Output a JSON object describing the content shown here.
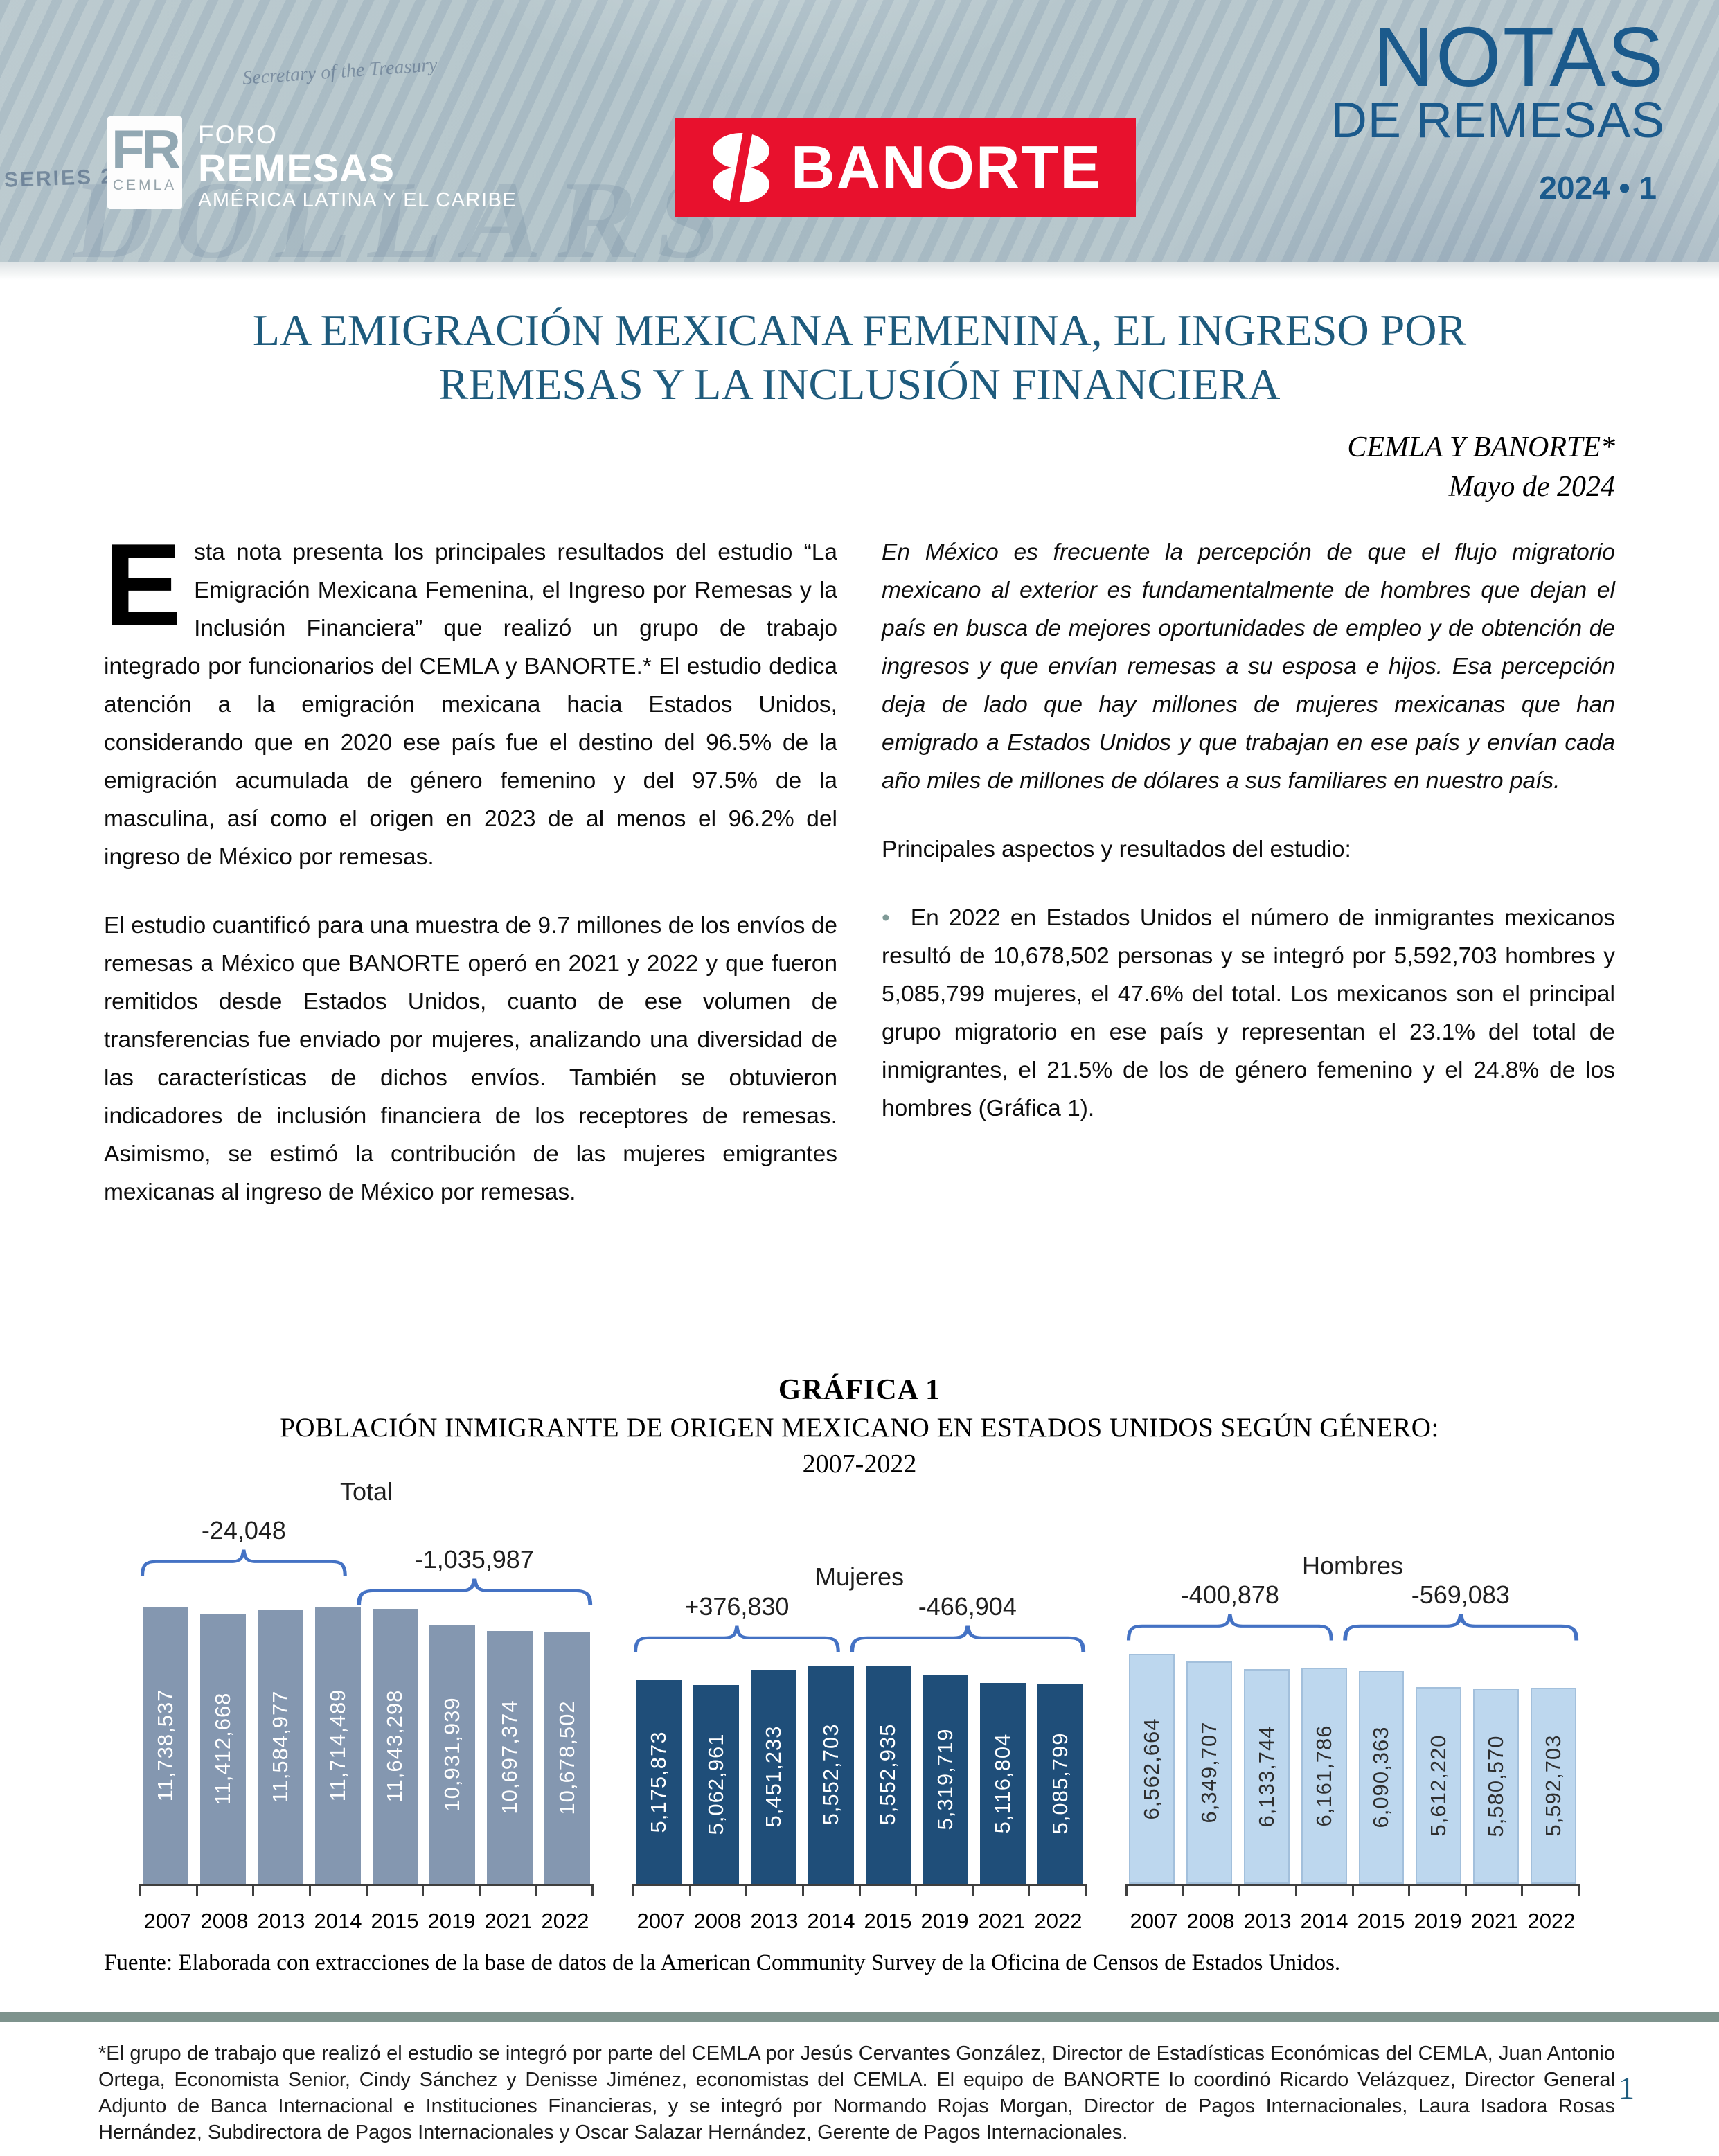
{
  "header": {
    "series_label": "SERIES 2009",
    "treasury_label": "Secretary of the Treasury",
    "watermark": "DOLLARS",
    "fr_logo": {
      "initials": "FR",
      "org": "CEMLA"
    },
    "foro": {
      "line1": "FORO",
      "line2": "REMESAS",
      "line3": "AMÉRICA LATINA Y EL CARIBE"
    },
    "banorte_label": "BANORTE",
    "masthead": {
      "line1": "NOTAS",
      "line2": "DE REMESAS",
      "issue": "2024 •  1"
    }
  },
  "title": {
    "line1": "LA EMIGRACIÓN MEXICANA FEMENINA, EL INGRESO POR",
    "line2": "REMESAS Y LA INCLUSIÓN FINANCIERA"
  },
  "byline": {
    "authors": "CEMLA Y BANORTE*",
    "date": "Mayo de 2024"
  },
  "body": {
    "left": {
      "dropcap": "E",
      "para1": "sta nota presenta los principales resultados del estudio “La Emigración Mexicana Femenina, el Ingreso por Remesas y la Inclusión Financiera” que realizó un grupo de trabajo integrado por funcionarios del CEMLA y BANORTE.* El estudio dedica atención a la emigración mexicana hacia Estados Unidos, considerando que en 2020 ese país fue el destino del 96.5% de la emigración acumulada de género femenino y del 97.5% de la masculina, así como el origen en 2023 de al menos el 96.2% del ingreso de México por remesas.",
      "para2": "El estudio cuantificó para una muestra de 9.7 millones de los envíos de remesas a México que BANORTE operó en 2021 y 2022 y que fueron remitidos desde Estados Unidos, cuanto de ese volumen de transferencias fue enviado por mujeres, analizando una diversidad de las características de dichos envíos. También se obtuvieron indicadores de inclusión financiera de los receptores de remesas. Asimismo, se estimó la contribución de las mujeres emigrantes mexicanas al ingreso de México por remesas."
    },
    "right": {
      "para1": "En México es frecuente la percepción de que el flujo migratorio mexicano al exterior es fundamentalmente de hombres que dejan el país en busca de mejores oportunidades de empleo y de obtención de ingresos y que envían remesas a su esposa e hijos. Esa percepción deja de lado que hay millones de mujeres mexicanas que han emigrado a Estados Unidos y que trabajan en ese país y envían cada año miles de millones de dólares a sus familiares en nuestro país.",
      "lead": "Principales aspectos y resultados del estudio:",
      "bullet_glyph": "•",
      "bullet1": "En 2022 en Estados Unidos el número de inmigrantes mexicanos resultó de 10,678,502 personas y se integró por 5,592,703 hombres y 5,085,799 mujeres, el 47.6% del total. Los mexicanos son el principal grupo migratorio en ese país y representan el 23.1% del total de inmigrantes, el 21.5% de los de género femenino y el 24.8% de los hombres (Gráfica 1)."
    }
  },
  "chart_data": {
    "type": "bar",
    "title": "GRÁFICA 1",
    "subtitle": "POBLACIÓN INMIGRANTE DE ORIGEN MEXICANO EN ESTADOS UNIDOS SEGÚN GÉNERO:",
    "period": "2007-2022",
    "categories": [
      "2007",
      "2008",
      "2013",
      "2014",
      "2015",
      "2019",
      "2021",
      "2022"
    ],
    "grid": false,
    "legend_position": "group-titles-above",
    "series": [
      {
        "name": "Total",
        "color": "#8497B0",
        "label_color": "#ffffff",
        "values": [
          11738537,
          11412668,
          11584977,
          11714489,
          11643298,
          10931939,
          10697374,
          10678502
        ],
        "annotations": [
          {
            "label": "-24,048",
            "span": "2007-2014"
          },
          {
            "label": "-1,035,987",
            "span": "2014-2022"
          }
        ]
      },
      {
        "name": "Mujeres",
        "color": "#1F4E79",
        "label_color": "#ffffff",
        "values": [
          5175873,
          5062961,
          5451233,
          5552703,
          5552935,
          5319719,
          5116804,
          5085799
        ],
        "annotations": [
          {
            "label": "+376,830",
            "span": "2007-2014"
          },
          {
            "label": "-466,904",
            "span": "2014-2022"
          }
        ]
      },
      {
        "name": "Hombres",
        "color": "#BDD7EE",
        "label_color": "#2e2e2e",
        "values": [
          6562664,
          6349707,
          6133744,
          6161786,
          6090363,
          5612220,
          5580570,
          5592703
        ],
        "annotations": [
          {
            "label": "-400,878",
            "span": "2007-2014"
          },
          {
            "label": "-569,083",
            "span": "2014-2022"
          }
        ]
      }
    ],
    "brace_color": "#4472C4",
    "source": "Fuente: Elaborada con extracciones de la base de datos de la American Community Survey de la Oficina de Censos de Estados Unidos."
  },
  "footnote": "*El grupo de trabajo que realizó el estudio se integró por parte del CEMLA por Jesús Cervantes González, Director de Estadísticas Económicas del CEMLA, Juan Antonio Ortega, Economista Senior, Cindy Sánchez y Denisse Jiménez, economistas del CEMLA. El equipo de BANORTE lo coordinó Ricardo Velázquez, Director General Adjunto de Banca Internacional e Instituciones Financieras, y se integró por Normando Rojas Morgan, Director de Pagos Internacionales, Laura Isadora Rosas Hernández, Subdirectora de Pagos Internacionales y Oscar Salazar Hernández, Gerente de Pagos Internacionales.",
  "page_number": "1"
}
